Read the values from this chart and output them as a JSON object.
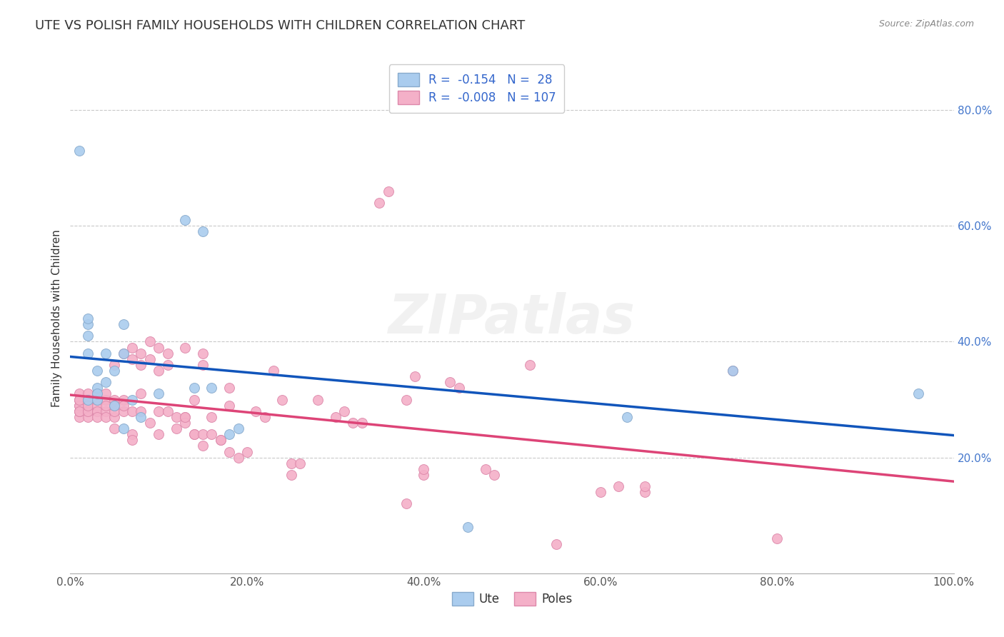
{
  "title": "UTE VS POLISH FAMILY HOUSEHOLDS WITH CHILDREN CORRELATION CHART",
  "source": "Source: ZipAtlas.com",
  "ylabel": "Family Households with Children",
  "xlim": [
    0.0,
    1.0
  ],
  "ylim": [
    0.0,
    0.88
  ],
  "watermark": "ZIPatlas",
  "bottom_legend": [
    "Ute",
    "Poles"
  ],
  "ute_color": "#aaccee",
  "poles_color": "#f4b0c8",
  "ute_edge": "#88aacc",
  "poles_edge": "#dd88aa",
  "trend_ute_color": "#1155bb",
  "trend_poles_color": "#dd4477",
  "background_color": "#ffffff",
  "grid_color": "#bbbbbb",
  "title_fontsize": 13,
  "axis_label_fontsize": 11,
  "tick_fontsize": 11,
  "ytick_color": "#4477cc",
  "xtick_color": "#555555",
  "ute_data": [
    [
      0.01,
      0.73
    ],
    [
      0.02,
      0.43
    ],
    [
      0.02,
      0.44
    ],
    [
      0.02,
      0.38
    ],
    [
      0.02,
      0.41
    ],
    [
      0.02,
      0.3
    ],
    [
      0.03,
      0.32
    ],
    [
      0.03,
      0.3
    ],
    [
      0.03,
      0.31
    ],
    [
      0.03,
      0.35
    ],
    [
      0.04,
      0.33
    ],
    [
      0.04,
      0.38
    ],
    [
      0.05,
      0.29
    ],
    [
      0.05,
      0.35
    ],
    [
      0.06,
      0.38
    ],
    [
      0.06,
      0.43
    ],
    [
      0.06,
      0.25
    ],
    [
      0.07,
      0.3
    ],
    [
      0.08,
      0.27
    ],
    [
      0.1,
      0.31
    ],
    [
      0.13,
      0.61
    ],
    [
      0.14,
      0.32
    ],
    [
      0.15,
      0.59
    ],
    [
      0.16,
      0.32
    ],
    [
      0.18,
      0.24
    ],
    [
      0.19,
      0.25
    ],
    [
      0.45,
      0.08
    ],
    [
      0.63,
      0.27
    ],
    [
      0.75,
      0.35
    ],
    [
      0.96,
      0.31
    ]
  ],
  "poles_data": [
    [
      0.01,
      0.3
    ],
    [
      0.01,
      0.31
    ],
    [
      0.01,
      0.29
    ],
    [
      0.01,
      0.28
    ],
    [
      0.01,
      0.27
    ],
    [
      0.01,
      0.28
    ],
    [
      0.01,
      0.3
    ],
    [
      0.01,
      0.29
    ],
    [
      0.01,
      0.3
    ],
    [
      0.01,
      0.28
    ],
    [
      0.02,
      0.3
    ],
    [
      0.02,
      0.29
    ],
    [
      0.02,
      0.3
    ],
    [
      0.02,
      0.28
    ],
    [
      0.02,
      0.27
    ],
    [
      0.02,
      0.31
    ],
    [
      0.02,
      0.29
    ],
    [
      0.02,
      0.3
    ],
    [
      0.02,
      0.28
    ],
    [
      0.02,
      0.29
    ],
    [
      0.03,
      0.31
    ],
    [
      0.03,
      0.3
    ],
    [
      0.03,
      0.28
    ],
    [
      0.03,
      0.29
    ],
    [
      0.03,
      0.3
    ],
    [
      0.03,
      0.28
    ],
    [
      0.03,
      0.27
    ],
    [
      0.04,
      0.3
    ],
    [
      0.04,
      0.28
    ],
    [
      0.04,
      0.29
    ],
    [
      0.04,
      0.27
    ],
    [
      0.04,
      0.31
    ],
    [
      0.05,
      0.36
    ],
    [
      0.05,
      0.3
    ],
    [
      0.05,
      0.27
    ],
    [
      0.05,
      0.28
    ],
    [
      0.05,
      0.29
    ],
    [
      0.05,
      0.25
    ],
    [
      0.06,
      0.3
    ],
    [
      0.06,
      0.28
    ],
    [
      0.06,
      0.29
    ],
    [
      0.06,
      0.38
    ],
    [
      0.07,
      0.39
    ],
    [
      0.07,
      0.37
    ],
    [
      0.07,
      0.28
    ],
    [
      0.07,
      0.24
    ],
    [
      0.07,
      0.23
    ],
    [
      0.08,
      0.36
    ],
    [
      0.08,
      0.38
    ],
    [
      0.08,
      0.28
    ],
    [
      0.08,
      0.31
    ],
    [
      0.09,
      0.4
    ],
    [
      0.09,
      0.37
    ],
    [
      0.09,
      0.26
    ],
    [
      0.1,
      0.39
    ],
    [
      0.1,
      0.35
    ],
    [
      0.1,
      0.28
    ],
    [
      0.1,
      0.24
    ],
    [
      0.11,
      0.36
    ],
    [
      0.11,
      0.38
    ],
    [
      0.11,
      0.28
    ],
    [
      0.12,
      0.27
    ],
    [
      0.12,
      0.25
    ],
    [
      0.13,
      0.27
    ],
    [
      0.13,
      0.26
    ],
    [
      0.13,
      0.39
    ],
    [
      0.13,
      0.27
    ],
    [
      0.14,
      0.3
    ],
    [
      0.14,
      0.24
    ],
    [
      0.14,
      0.24
    ],
    [
      0.15,
      0.38
    ],
    [
      0.15,
      0.36
    ],
    [
      0.15,
      0.22
    ],
    [
      0.15,
      0.24
    ],
    [
      0.16,
      0.27
    ],
    [
      0.16,
      0.24
    ],
    [
      0.17,
      0.23
    ],
    [
      0.17,
      0.23
    ],
    [
      0.18,
      0.32
    ],
    [
      0.18,
      0.29
    ],
    [
      0.18,
      0.21
    ],
    [
      0.19,
      0.2
    ],
    [
      0.2,
      0.21
    ],
    [
      0.21,
      0.28
    ],
    [
      0.22,
      0.27
    ],
    [
      0.23,
      0.35
    ],
    [
      0.24,
      0.3
    ],
    [
      0.25,
      0.17
    ],
    [
      0.25,
      0.19
    ],
    [
      0.26,
      0.19
    ],
    [
      0.28,
      0.3
    ],
    [
      0.3,
      0.27
    ],
    [
      0.31,
      0.28
    ],
    [
      0.32,
      0.26
    ],
    [
      0.33,
      0.26
    ],
    [
      0.35,
      0.64
    ],
    [
      0.36,
      0.66
    ],
    [
      0.38,
      0.3
    ],
    [
      0.38,
      0.12
    ],
    [
      0.39,
      0.34
    ],
    [
      0.4,
      0.17
    ],
    [
      0.4,
      0.18
    ],
    [
      0.43,
      0.33
    ],
    [
      0.44,
      0.32
    ],
    [
      0.47,
      0.18
    ],
    [
      0.48,
      0.17
    ],
    [
      0.52,
      0.36
    ],
    [
      0.55,
      0.05
    ],
    [
      0.6,
      0.14
    ],
    [
      0.62,
      0.15
    ],
    [
      0.65,
      0.14
    ],
    [
      0.65,
      0.15
    ],
    [
      0.75,
      0.35
    ],
    [
      0.8,
      0.06
    ]
  ]
}
